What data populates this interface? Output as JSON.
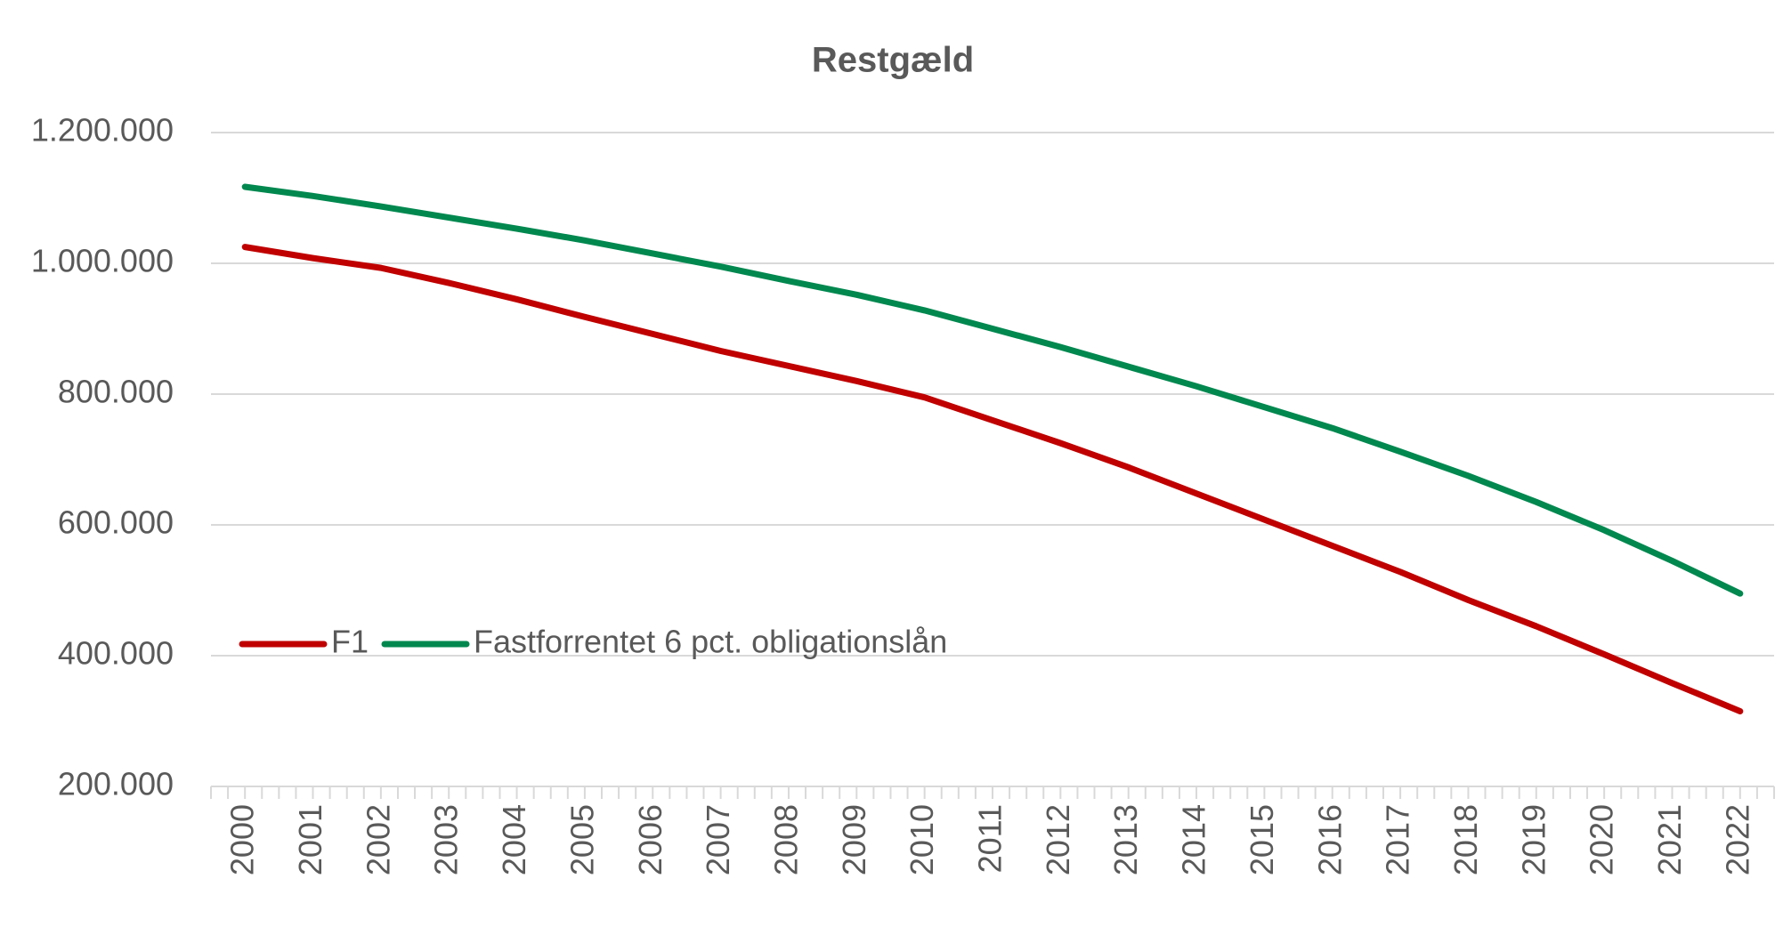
{
  "chart_data": {
    "type": "line",
    "title": "Restgæld",
    "categories": [
      "2000",
      "2001",
      "2002",
      "2003",
      "2004",
      "2005",
      "2006",
      "2007",
      "2008",
      "2009",
      "2010",
      "2011",
      "2012",
      "2013",
      "2014",
      "2015",
      "2016",
      "2017",
      "2018",
      "2019",
      "2020",
      "2021",
      "2022"
    ],
    "series": [
      {
        "name": "F1",
        "color": "#c00000",
        "values": [
          1025000,
          1008000,
          993000,
          970000,
          945000,
          918000,
          892000,
          866000,
          843000,
          820000,
          795000,
          760000,
          725000,
          688000,
          648000,
          608000,
          568000,
          528000,
          485000,
          445000,
          402000,
          358000,
          315000
        ]
      },
      {
        "name": "Fastforrentet 6 pct. obligationslån",
        "color": "#00884f",
        "values": [
          1117000,
          1103000,
          1087000,
          1070000,
          1053000,
          1035000,
          1015000,
          995000,
          973000,
          952000,
          928000,
          900000,
          872000,
          842000,
          812000,
          780000,
          748000,
          712000,
          675000,
          635000,
          592000,
          545000,
          495000
        ]
      }
    ],
    "ylim": [
      200000,
      1200000
    ],
    "yticks": [
      {
        "value": 200000,
        "label": "200.000"
      },
      {
        "value": 400000,
        "label": "400.000"
      },
      {
        "value": 600000,
        "label": "600.000"
      },
      {
        "value": 800000,
        "label": "800.000"
      },
      {
        "value": 1000000,
        "label": "1.000.000"
      },
      {
        "value": 1200000,
        "label": "1.200.000"
      }
    ],
    "grid": true
  }
}
